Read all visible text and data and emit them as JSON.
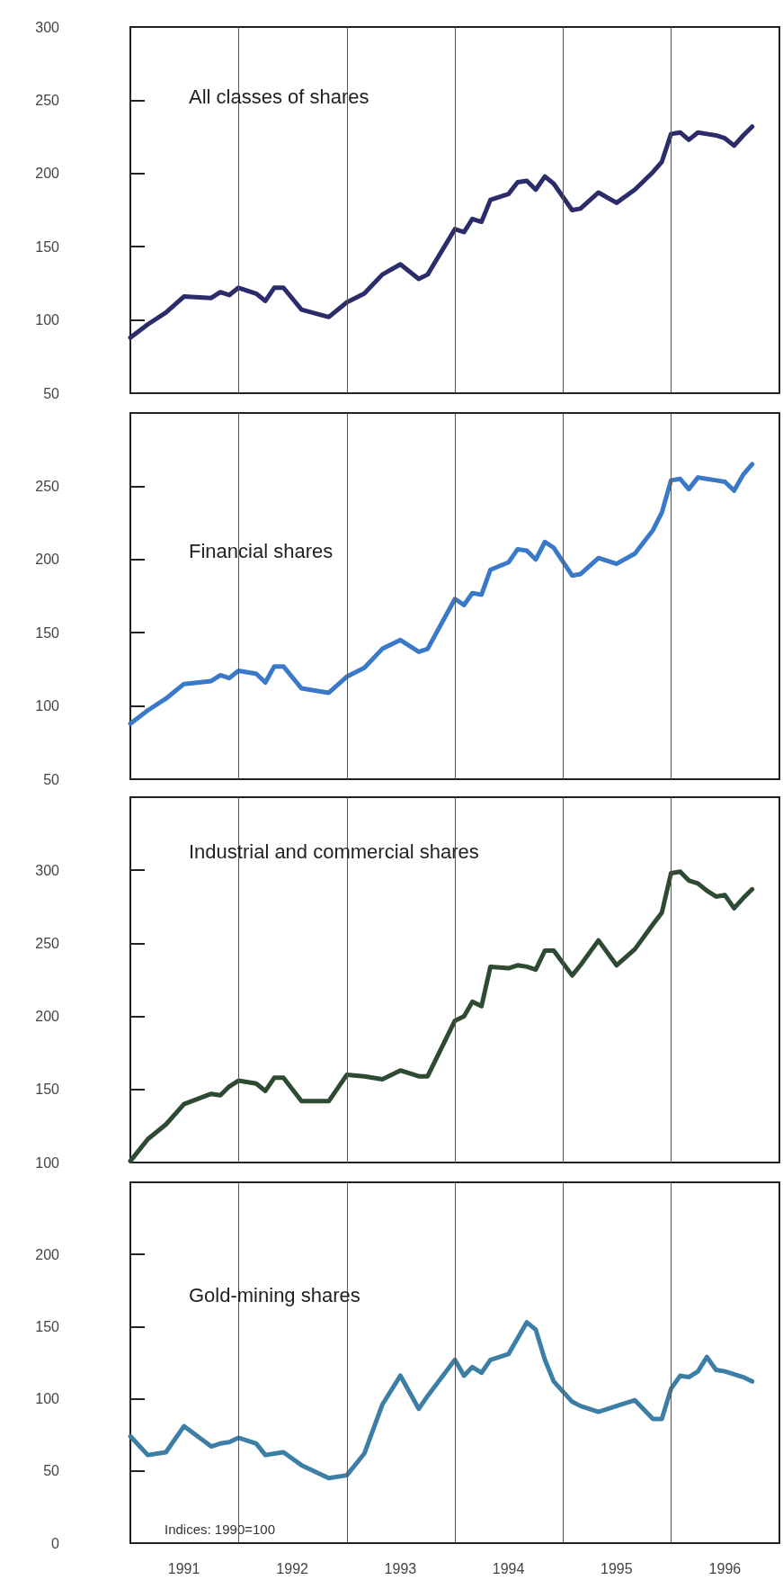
{
  "chart_data": [
    {
      "type": "line",
      "title": "All classes of shares",
      "x": [
        "1991-01",
        "1991-03",
        "1991-05",
        "1991-07",
        "1991-10",
        "1991-11",
        "1991-12",
        "1992-01",
        "1992-03",
        "1992-04",
        "1992-05",
        "1992-06",
        "1992-08",
        "1992-11",
        "1993-01",
        "1993-03",
        "1993-05",
        "1993-07",
        "1993-09",
        "1993-10",
        "1994-01",
        "1994-02",
        "1994-03",
        "1994-04",
        "1994-05",
        "1994-07",
        "1994-08",
        "1994-09",
        "1994-10",
        "1994-11",
        "1994-12",
        "1995-02",
        "1995-03",
        "1995-05",
        "1995-07",
        "1995-09",
        "1995-11",
        "1995-12",
        "1996-01",
        "1996-02",
        "1996-03",
        "1996-04",
        "1996-05",
        "1996-06",
        "1996-07",
        "1996-08",
        "1996-09",
        "1996-10"
      ],
      "series": [
        {
          "color": "#2b2d6b",
          "values": [
            88,
            97,
            105,
            116,
            115,
            119,
            117,
            122,
            118,
            113,
            122,
            122,
            107,
            102,
            112,
            118,
            131,
            138,
            128,
            131,
            162,
            160,
            169,
            167,
            182,
            186,
            194,
            195,
            189,
            198,
            193,
            175,
            176,
            187,
            180,
            189,
            201,
            208,
            227,
            228,
            223,
            228,
            227,
            226,
            224,
            219,
            226,
            232
          ]
        }
      ],
      "xlim": [
        "1991-01",
        "1997-01"
      ],
      "ylim": [
        50,
        300
      ],
      "yticks": [
        50,
        100,
        150,
        200,
        250,
        300
      ],
      "tick_labels": "y",
      "ref_lines": [
        {
          "axis": "x",
          "value": "1992-01",
          "color": "#555555"
        },
        {
          "axis": "x",
          "value": "1993-01",
          "color": "#555555"
        },
        {
          "axis": "x",
          "value": "1994-01",
          "color": "#555555"
        },
        {
          "axis": "x",
          "value": "1995-01",
          "color": "#555555"
        },
        {
          "axis": "x",
          "value": "1996-01",
          "color": "#555555"
        }
      ]
    },
    {
      "type": "line",
      "title": "Financial shares",
      "x": [
        "1991-01",
        "1991-03",
        "1991-05",
        "1991-07",
        "1991-10",
        "1991-11",
        "1991-12",
        "1992-01",
        "1992-03",
        "1992-04",
        "1992-05",
        "1992-06",
        "1992-08",
        "1992-11",
        "1993-01",
        "1993-03",
        "1993-05",
        "1993-07",
        "1993-09",
        "1993-10",
        "1994-01",
        "1994-02",
        "1994-03",
        "1994-04",
        "1994-05",
        "1994-07",
        "1994-08",
        "1994-09",
        "1994-10",
        "1994-11",
        "1994-12",
        "1995-02",
        "1995-03",
        "1995-05",
        "1995-07",
        "1995-09",
        "1995-11",
        "1995-12",
        "1996-01",
        "1996-02",
        "1996-03",
        "1996-04",
        "1996-05",
        "1996-06",
        "1996-07",
        "1996-08",
        "1996-09",
        "1996-10"
      ],
      "series": [
        {
          "color": "#3a78c8",
          "values": [
            88,
            97,
            105,
            115,
            117,
            121,
            119,
            124,
            122,
            116,
            127,
            127,
            112,
            109,
            120,
            126,
            139,
            145,
            137,
            139,
            173,
            169,
            177,
            176,
            193,
            198,
            207,
            206,
            200,
            212,
            208,
            189,
            190,
            201,
            197,
            204,
            220,
            232,
            254,
            255,
            248,
            256,
            255,
            254,
            253,
            247,
            258,
            265
          ]
        }
      ],
      "xlim": [
        "1991-01",
        "1997-01"
      ],
      "ylim": [
        50,
        300
      ],
      "yticks": [
        50,
        100,
        150,
        200,
        250,
        {
          "value": 300,
          "label": null
        }
      ],
      "tick_labels": "y",
      "ref_lines": [
        {
          "axis": "x",
          "value": "1992-01",
          "color": "#555555"
        },
        {
          "axis": "x",
          "value": "1993-01",
          "color": "#555555"
        },
        {
          "axis": "x",
          "value": "1994-01",
          "color": "#555555"
        },
        {
          "axis": "x",
          "value": "1995-01",
          "color": "#555555"
        },
        {
          "axis": "x",
          "value": "1996-01",
          "color": "#555555"
        }
      ]
    },
    {
      "type": "line",
      "title": "Industrial and commercial shares",
      "x": [
        "1991-01",
        "1991-03",
        "1991-05",
        "1991-07",
        "1991-10",
        "1991-11",
        "1991-12",
        "1992-01",
        "1992-03",
        "1992-04",
        "1992-05",
        "1992-06",
        "1992-08",
        "1992-11",
        "1993-01",
        "1993-03",
        "1993-05",
        "1993-07",
        "1993-09",
        "1993-10",
        "1994-01",
        "1994-02",
        "1994-03",
        "1994-04",
        "1994-05",
        "1994-07",
        "1994-08",
        "1994-09",
        "1994-10",
        "1994-11",
        "1994-12",
        "1995-02",
        "1995-03",
        "1995-05",
        "1995-07",
        "1995-09",
        "1995-11",
        "1995-12",
        "1996-01",
        "1996-02",
        "1996-03",
        "1996-04",
        "1996-05",
        "1996-06",
        "1996-07",
        "1996-08",
        "1996-09",
        "1996-10"
      ],
      "series": [
        {
          "color": "#2e4a32",
          "values": [
            101,
            116,
            126,
            140,
            147,
            146,
            152,
            156,
            154,
            149,
            158,
            158,
            142,
            142,
            160,
            159,
            157,
            163,
            159,
            159,
            197,
            200,
            210,
            207,
            234,
            233,
            235,
            234,
            232,
            245,
            245,
            228,
            235,
            252,
            235,
            246,
            263,
            271,
            298,
            299,
            293,
            291,
            286,
            282,
            283,
            274,
            281,
            287
          ]
        }
      ],
      "xlim": [
        "1991-01",
        "1997-01"
      ],
      "ylim": [
        100,
        350
      ],
      "yticks": [
        100,
        150,
        200,
        250,
        300,
        {
          "value": 350,
          "label": null
        }
      ],
      "tick_labels": "y",
      "ref_lines": [
        {
          "axis": "x",
          "value": "1992-01",
          "color": "#555555"
        },
        {
          "axis": "x",
          "value": "1993-01",
          "color": "#555555"
        },
        {
          "axis": "x",
          "value": "1994-01",
          "color": "#555555"
        },
        {
          "axis": "x",
          "value": "1995-01",
          "color": "#555555"
        },
        {
          "axis": "x",
          "value": "1996-01",
          "color": "#555555"
        }
      ]
    },
    {
      "type": "line",
      "title": "Gold-mining shares",
      "annotations": [
        "Indices: 1990=100"
      ],
      "x": [
        "1991-01",
        "1991-03",
        "1991-05",
        "1991-07",
        "1991-10",
        "1991-11",
        "1991-12",
        "1992-01",
        "1992-03",
        "1992-04",
        "1992-05",
        "1992-06",
        "1992-08",
        "1992-11",
        "1993-01",
        "1993-03",
        "1993-05",
        "1993-07",
        "1993-09",
        "1993-10",
        "1994-01",
        "1994-02",
        "1994-03",
        "1994-04",
        "1994-05",
        "1994-07",
        "1994-08",
        "1994-09",
        "1994-10",
        "1994-11",
        "1994-12",
        "1995-02",
        "1995-03",
        "1995-05",
        "1995-07",
        "1995-09",
        "1995-11",
        "1995-12",
        "1996-01",
        "1996-02",
        "1996-03",
        "1996-04",
        "1996-05",
        "1996-06",
        "1996-07",
        "1996-08",
        "1996-09",
        "1996-10"
      ],
      "series": [
        {
          "color": "#3d7ea6",
          "values": [
            74,
            61,
            63,
            81,
            67,
            69,
            70,
            73,
            69,
            61,
            62,
            63,
            54,
            45,
            47,
            62,
            96,
            116,
            93,
            102,
            127,
            116,
            122,
            118,
            127,
            131,
            142,
            153,
            148,
            127,
            112,
            98,
            95,
            91,
            95,
            99,
            86,
            86,
            107,
            116,
            115,
            119,
            129,
            120,
            119,
            117,
            115,
            112
          ]
        }
      ],
      "xlim": [
        "1991-01",
        "1997-01"
      ],
      "xticks": [
        {
          "value": "1991-07",
          "label": "1991"
        },
        {
          "value": "1992-07",
          "label": "1992"
        },
        {
          "value": "1993-07",
          "label": "1993"
        },
        {
          "value": "1994-07",
          "label": "1994"
        },
        {
          "value": "1995-07",
          "label": "1995"
        },
        {
          "value": "1996-07",
          "label": "1996"
        }
      ],
      "ylim": [
        0,
        250
      ],
      "yticks": [
        0,
        50,
        100,
        150,
        200,
        {
          "value": 250,
          "label": null
        }
      ],
      "ref_lines": [
        {
          "axis": "x",
          "value": "1992-01",
          "color": "#555555"
        },
        {
          "axis": "x",
          "value": "1993-01",
          "color": "#555555"
        },
        {
          "axis": "x",
          "value": "1994-01",
          "color": "#555555"
        },
        {
          "axis": "x",
          "value": "1995-01",
          "color": "#555555"
        },
        {
          "axis": "x",
          "value": "1996-01",
          "color": "#555555"
        }
      ]
    }
  ]
}
